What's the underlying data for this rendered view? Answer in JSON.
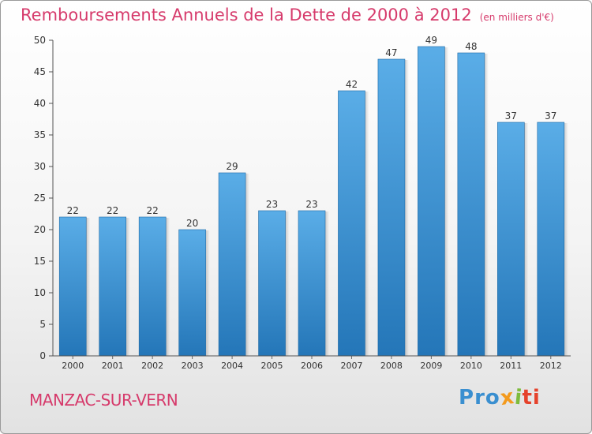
{
  "chart_data": {
    "type": "bar",
    "title": "Remboursements Annuels de la Dette de 2000 à 2012",
    "unit_note": "(en milliers d'€)",
    "categories": [
      "2000",
      "2001",
      "2002",
      "2003",
      "2004",
      "2005",
      "2006",
      "2007",
      "2008",
      "2009",
      "2010",
      "2011",
      "2012"
    ],
    "values": [
      22,
      22,
      22,
      20,
      29,
      23,
      23,
      42,
      47,
      49,
      48,
      37,
      37
    ],
    "ylim": [
      0,
      50
    ],
    "yticks": [
      0,
      5,
      10,
      15,
      20,
      25,
      30,
      35,
      40,
      45,
      50
    ],
    "xlabel": "",
    "ylabel": "",
    "grid": false,
    "bar_color_top": "#5aade7",
    "bar_color_bottom": "#2476b8"
  },
  "place_name": "MANZAC-SUR-VERN",
  "logo": {
    "text": "Proxiti",
    "colors": [
      "#3a8fd0",
      "#f39a1d",
      "#7dbb3c",
      "#e5422b"
    ]
  },
  "colors": {
    "title": "#d63a6b",
    "axis": "#333333"
  }
}
